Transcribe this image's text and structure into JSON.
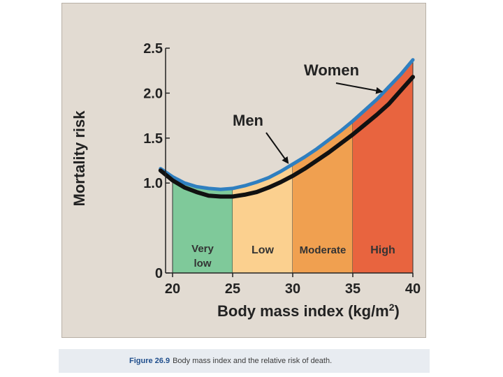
{
  "chart_data": {
    "type": "line",
    "xlabel": "Body mass index (kg/m",
    "xlabel_sup": "2",
    "xlabel_end": ")",
    "ylabel": "Mortality risk",
    "xlim": [
      20,
      40
    ],
    "ylim": [
      0,
      2.5
    ],
    "x_ticks": [
      "20",
      "25",
      "30",
      "35",
      "40"
    ],
    "y_ticks": [
      "0",
      "1.0",
      "1.5",
      "2.0",
      "2.5"
    ],
    "zones": [
      {
        "lines": [
          "Very",
          "low"
        ],
        "from": 20,
        "to": 25,
        "color": "#7fc99a"
      },
      {
        "lines": [
          "Low"
        ],
        "from": 25,
        "to": 30,
        "color": "#fbd08f"
      },
      {
        "lines": [
          "Moderate"
        ],
        "from": 30,
        "to": 35,
        "color": "#f0a050"
      },
      {
        "lines": [
          "High"
        ],
        "from": 35,
        "to": 40,
        "color": "#e8643f"
      }
    ],
    "series": [
      {
        "name": "Women",
        "color": "#2f7fc0",
        "x": [
          19,
          20,
          21,
          22,
          23,
          24,
          25,
          26,
          27,
          28,
          29,
          30,
          31,
          32,
          33,
          34,
          35,
          36,
          37,
          38,
          39,
          40
        ],
        "y": [
          1.16,
          1.07,
          1.0,
          0.96,
          0.94,
          0.93,
          0.94,
          0.97,
          1.01,
          1.06,
          1.13,
          1.21,
          1.29,
          1.38,
          1.48,
          1.58,
          1.69,
          1.81,
          1.93,
          2.07,
          2.21,
          2.37
        ]
      },
      {
        "name": "Men",
        "color": "#111111",
        "x": [
          19,
          20,
          21,
          22,
          23,
          24,
          25,
          26,
          27,
          28,
          29,
          30,
          31,
          32,
          33,
          34,
          35,
          36,
          37,
          38,
          39,
          40
        ],
        "y": [
          1.14,
          1.03,
          0.95,
          0.9,
          0.86,
          0.85,
          0.85,
          0.87,
          0.9,
          0.95,
          1.01,
          1.08,
          1.16,
          1.25,
          1.34,
          1.44,
          1.54,
          1.65,
          1.76,
          1.88,
          2.03,
          2.18
        ]
      }
    ],
    "annotations": [
      {
        "text": "Women",
        "arrow_to_series": "Women"
      },
      {
        "text": "Men",
        "arrow_to_series": "Men"
      }
    ],
    "grid": false
  },
  "caption": {
    "label": "Figure 26.9",
    "text": "Body mass index and the relative risk of death."
  }
}
